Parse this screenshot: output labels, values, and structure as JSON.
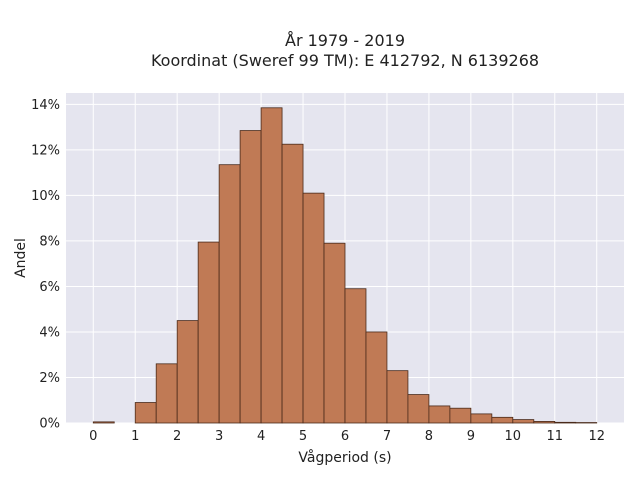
{
  "chart_data": {
    "type": "bar",
    "title_line1": "År 1979 - 2019",
    "title_line2": "Koordinat (Sweref 99 TM): E 412792, N 6139268",
    "xlabel": "Vågperiod (s)",
    "ylabel": "Andel",
    "xlim": [
      -0.65,
      12.65
    ],
    "ylim": [
      0,
      14.5
    ],
    "x_ticks": [
      0,
      1,
      2,
      3,
      4,
      5,
      6,
      7,
      8,
      9,
      10,
      11,
      12
    ],
    "x_tick_labels": [
      "0",
      "1",
      "2",
      "3",
      "4",
      "5",
      "6",
      "7",
      "8",
      "9",
      "10",
      "11",
      "12"
    ],
    "y_ticks": [
      0,
      2,
      4,
      6,
      8,
      10,
      12,
      14
    ],
    "y_tick_labels": [
      "0%",
      "2%",
      "4%",
      "6%",
      "8%",
      "10%",
      "12%",
      "14%"
    ],
    "bin_width": 0.5,
    "bins": [
      {
        "x0": 0.0,
        "x1": 0.5,
        "value": 0.05
      },
      {
        "x0": 0.5,
        "x1": 1.0,
        "value": 0.0
      },
      {
        "x0": 1.0,
        "x1": 1.5,
        "value": 0.9
      },
      {
        "x0": 1.5,
        "x1": 2.0,
        "value": 2.6
      },
      {
        "x0": 2.0,
        "x1": 2.5,
        "value": 4.5
      },
      {
        "x0": 2.5,
        "x1": 3.0,
        "value": 7.95
      },
      {
        "x0": 3.0,
        "x1": 3.5,
        "value": 11.35
      },
      {
        "x0": 3.5,
        "x1": 4.0,
        "value": 12.85
      },
      {
        "x0": 4.0,
        "x1": 4.5,
        "value": 13.85
      },
      {
        "x0": 4.5,
        "x1": 5.0,
        "value": 12.25
      },
      {
        "x0": 5.0,
        "x1": 5.5,
        "value": 10.1
      },
      {
        "x0": 5.5,
        "x1": 6.0,
        "value": 7.9
      },
      {
        "x0": 6.0,
        "x1": 6.5,
        "value": 5.9
      },
      {
        "x0": 6.5,
        "x1": 7.0,
        "value": 4.0
      },
      {
        "x0": 7.0,
        "x1": 7.5,
        "value": 2.3
      },
      {
        "x0": 7.5,
        "x1": 8.0,
        "value": 1.25
      },
      {
        "x0": 8.0,
        "x1": 8.5,
        "value": 0.75
      },
      {
        "x0": 8.5,
        "x1": 9.0,
        "value": 0.65
      },
      {
        "x0": 9.0,
        "x1": 9.5,
        "value": 0.4
      },
      {
        "x0": 9.5,
        "x1": 10.0,
        "value": 0.25
      },
      {
        "x0": 10.0,
        "x1": 10.5,
        "value": 0.15
      },
      {
        "x0": 10.5,
        "x1": 11.0,
        "value": 0.07
      },
      {
        "x0": 11.0,
        "x1": 11.5,
        "value": 0.03
      },
      {
        "x0": 11.5,
        "x1": 12.0,
        "value": 0.02
      }
    ],
    "grid": true,
    "colors": {
      "bar_fill": "#c07a55",
      "bar_stroke": "#4a2a1a",
      "plot_bg": "#e5e5ef",
      "grid": "#ffffff"
    }
  }
}
